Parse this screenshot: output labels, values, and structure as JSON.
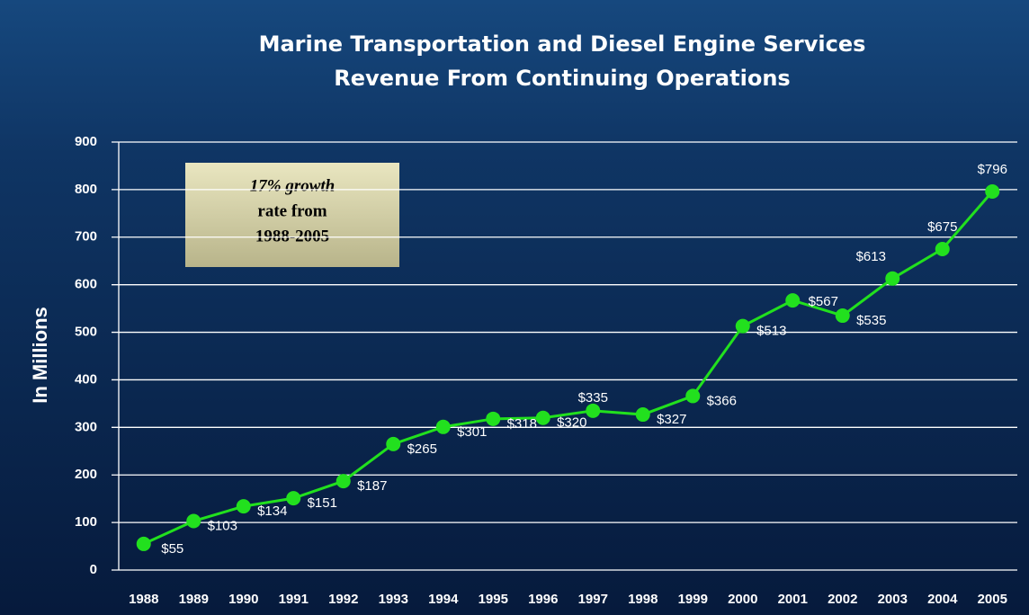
{
  "chart_data": {
    "type": "line",
    "title": "Marine Transportation and Diesel Engine Services",
    "subtitle": "Revenue From Continuing Operations",
    "y_label": "In Millions",
    "annotation": [
      "17% growth",
      "rate from",
      "1988-2005"
    ],
    "categories": [
      "1988",
      "1989",
      "1990",
      "1991",
      "1992",
      "1993",
      "1994",
      "1995",
      "1996",
      "1997",
      "1998",
      "1999",
      "2000",
      "2001",
      "2002",
      "2003",
      "2004",
      "2005"
    ],
    "series": [
      {
        "name": "Revenue",
        "color": "#22e01e",
        "values": [
          55,
          103,
          134,
          151,
          187,
          265,
          301,
          318,
          320,
          335,
          327,
          366,
          513,
          567,
          535,
          613,
          675,
          796
        ],
        "value_labels": [
          "$55",
          "$103",
          "$134",
          "$151",
          "$187",
          "$265",
          "$301",
          "$318",
          "$320",
          "$335",
          "$327",
          "$366",
          "$513",
          "$567",
          "$535",
          "$613",
          "$675",
          "$796"
        ]
      }
    ],
    "ylim": [
      0,
      900
    ],
    "yticks": [
      0,
      100,
      200,
      300,
      400,
      500,
      600,
      700,
      800,
      900
    ],
    "grid": true
  }
}
